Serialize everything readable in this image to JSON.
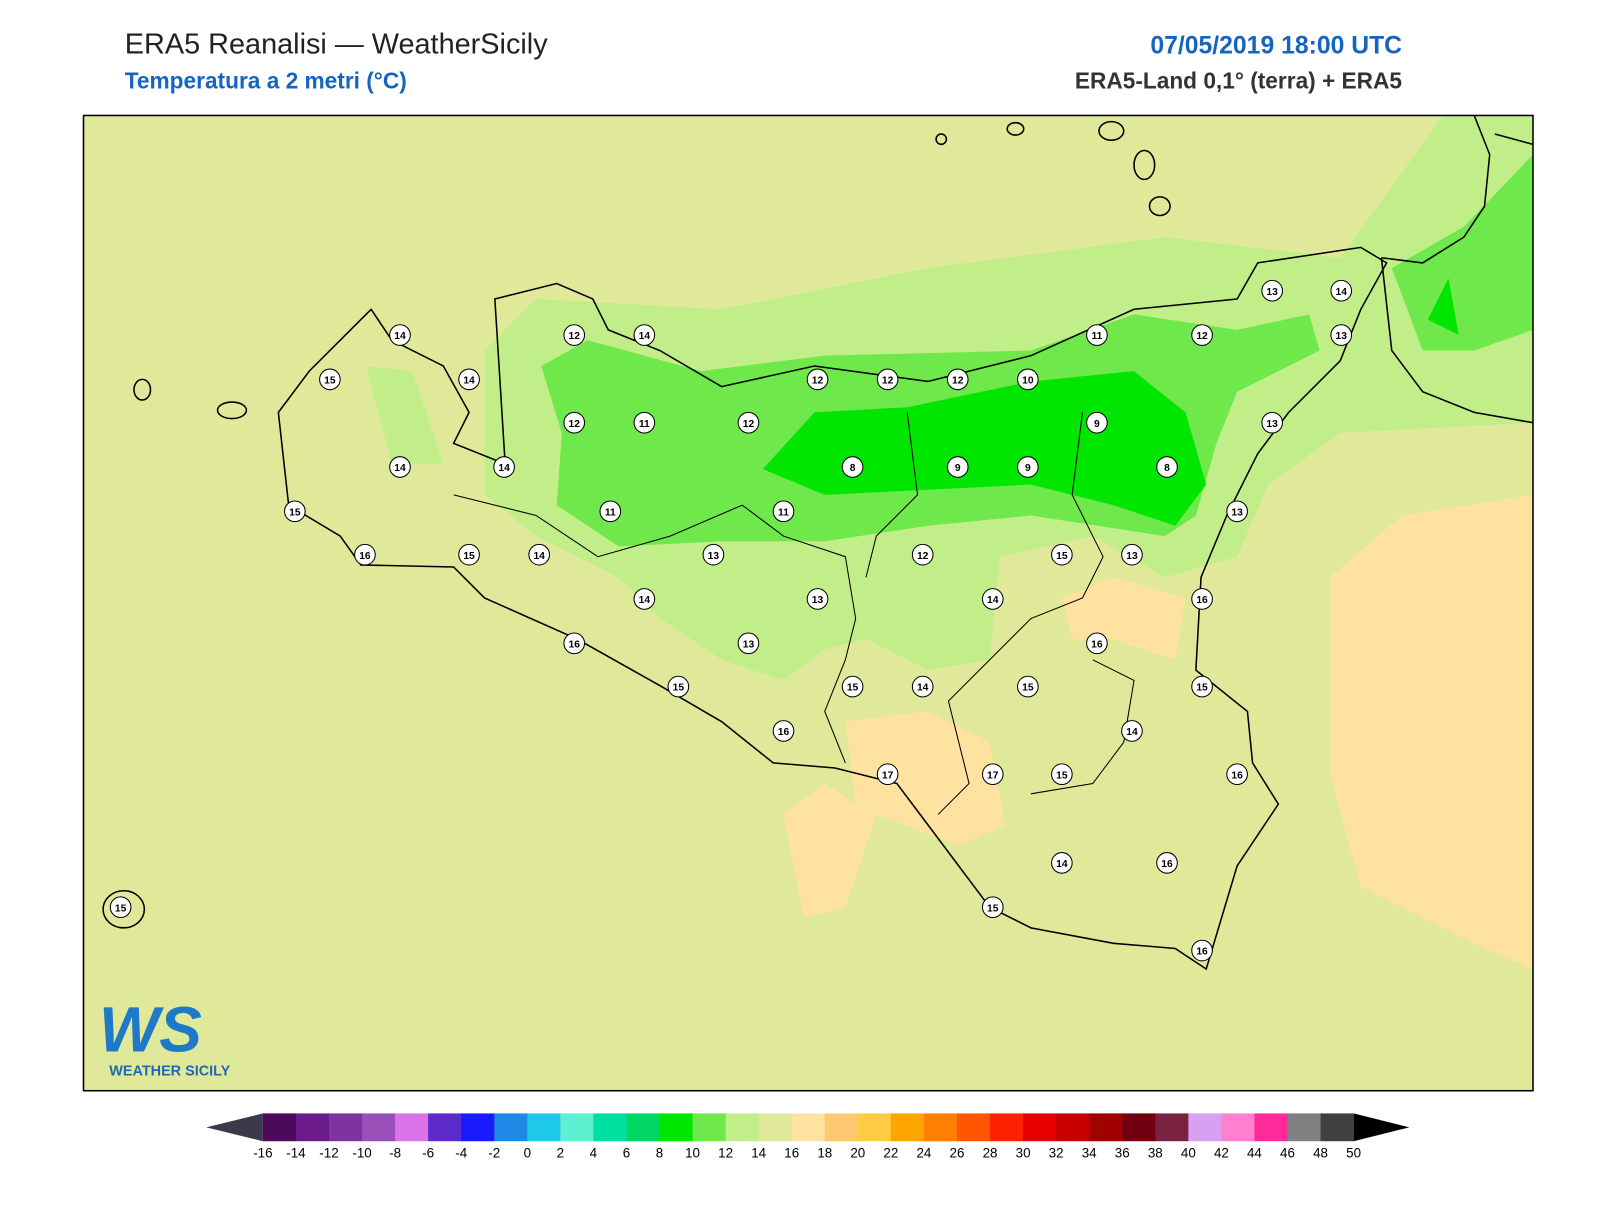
{
  "header": {
    "title": "ERA5 Reanalisi — WeatherSicily",
    "subtitle": "Temperatura a 2 metri (°C)",
    "datetime": "07/05/2019 18:00 UTC",
    "source": "ERA5-Land 0,1° (terra) + ERA5"
  },
  "stations": [
    14,
    15,
    14,
    14,
    14,
    15,
    16,
    15,
    14,
    12,
    14,
    12,
    11,
    12,
    11,
    11,
    13,
    14,
    13,
    16,
    13,
    15,
    16,
    12,
    12,
    12,
    10,
    8,
    9,
    9,
    11,
    9,
    8,
    12,
    13,
    14,
    13,
    13,
    13,
    12,
    15,
    13,
    14,
    16,
    16,
    15,
    14,
    15,
    15,
    14,
    17,
    17,
    15,
    16,
    14,
    16,
    15,
    16,
    15
  ],
  "colorbar": {
    "ticks": [
      -16,
      -14,
      -12,
      -10,
      -8,
      -6,
      -4,
      -2,
      0,
      2,
      4,
      6,
      8,
      10,
      12,
      14,
      16,
      18,
      20,
      22,
      24,
      26,
      28,
      30,
      32,
      34,
      36,
      38,
      40,
      42,
      44,
      46,
      48,
      50
    ],
    "colors": [
      "#4b0a5c",
      "#6a1a8a",
      "#7e33a0",
      "#9b4fb8",
      "#d874e8",
      "#5b2ac8",
      "#1a1aff",
      "#1e88e5",
      "#1ec8e8",
      "#5ef0d0",
      "#00e0a0",
      "#00d864",
      "#00e600",
      "#6ee84a",
      "#c2ee8a",
      "#e0e99a",
      "#ffe2a0",
      "#fcc870",
      "#ffcc44",
      "#ffa500",
      "#ff8000",
      "#ff5500",
      "#ff2000",
      "#e80000",
      "#c80000",
      "#a00000",
      "#700010",
      "#7a2040",
      "#d8a0f0",
      "#ff80d0",
      "#ff2a9a",
      "#808080",
      "#404040"
    ],
    "under": "#3a3a4a",
    "over": "#000000"
  },
  "logo": {
    "mark": "WS",
    "text": "WEATHER SICILY"
  }
}
